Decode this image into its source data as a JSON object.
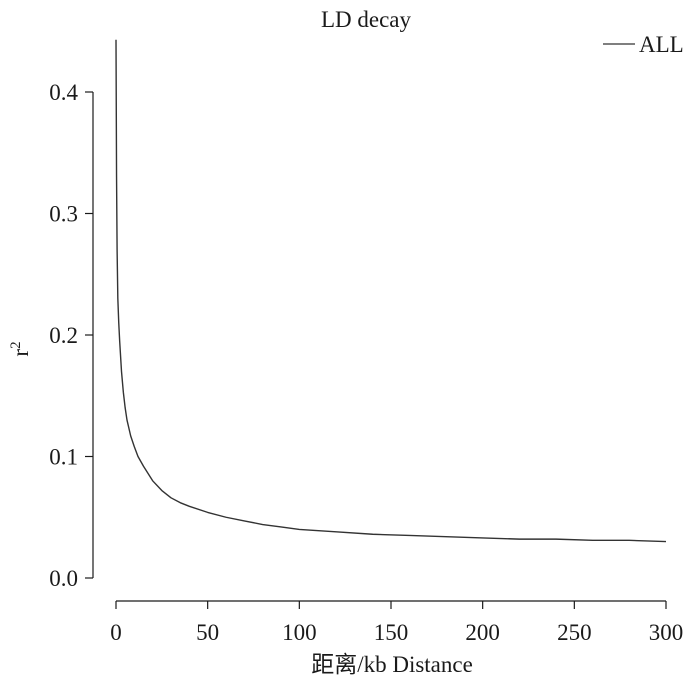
{
  "chart_data": {
    "type": "line",
    "title": "LD decay",
    "xlabel": "距离/kb Distance",
    "ylabel": "r",
    "ylabel_sup": "2",
    "xlim": [
      0,
      300
    ],
    "ylim": [
      0,
      0.4
    ],
    "x_ticks": [
      0,
      50,
      100,
      150,
      200,
      250,
      300
    ],
    "x_tick_labels": [
      "0",
      "50",
      "100",
      "150",
      "200",
      "250",
      "300"
    ],
    "y_ticks": [
      0,
      0.1,
      0.2,
      0.3,
      0.4
    ],
    "y_tick_labels": [
      "0.0",
      "0.1",
      "0.2",
      "0.3",
      "0.4"
    ],
    "grid": false,
    "legend": {
      "position": "top-right",
      "entries": [
        "ALL"
      ]
    },
    "series": [
      {
        "name": "ALL",
        "color": "#333333",
        "x": [
          0,
          0.3,
          0.6,
          1,
          1.5,
          2,
          3,
          4,
          5,
          6,
          8,
          10,
          12,
          15,
          20,
          25,
          30,
          35,
          40,
          50,
          60,
          70,
          80,
          90,
          100,
          120,
          140,
          160,
          180,
          200,
          220,
          240,
          260,
          280,
          300
        ],
        "y": [
          0.443,
          0.33,
          0.27,
          0.23,
          0.21,
          0.195,
          0.17,
          0.153,
          0.14,
          0.13,
          0.117,
          0.108,
          0.1,
          0.092,
          0.08,
          0.072,
          0.066,
          0.062,
          0.059,
          0.054,
          0.05,
          0.047,
          0.044,
          0.042,
          0.04,
          0.038,
          0.036,
          0.035,
          0.034,
          0.033,
          0.032,
          0.032,
          0.031,
          0.031,
          0.03
        ]
      }
    ]
  }
}
